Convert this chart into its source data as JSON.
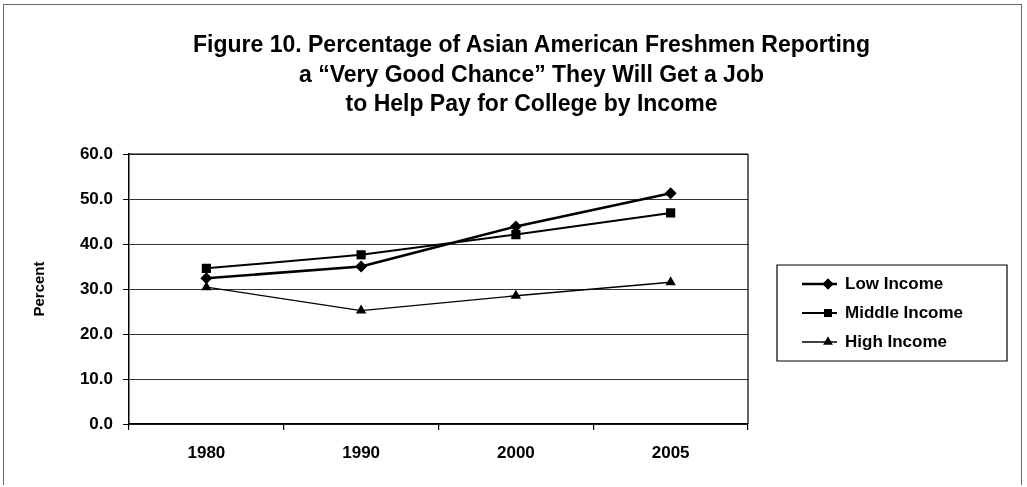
{
  "chart_data": {
    "type": "line",
    "title": "Figure 10. Percentage of Asian American Freshmen Reporting\na “Very Good Chance” They Will Get a Job\nto Help Pay for College by Income",
    "ylabel": "Percent",
    "categories": [
      "1980",
      "1990",
      "2000",
      "2005"
    ],
    "series": [
      {
        "name": "Low Income",
        "color": "#000000",
        "marker": "diamond",
        "values": [
          32.4,
          35.0,
          43.9,
          51.3
        ]
      },
      {
        "name": "Middle Income",
        "color": "#000000",
        "marker": "square",
        "values": [
          34.6,
          37.6,
          42.1,
          46.9
        ]
      },
      {
        "name": "High Income",
        "color": "#000000",
        "marker": "triangle",
        "values": [
          30.4,
          25.2,
          28.5,
          31.5
        ]
      }
    ],
    "ylim": [
      0,
      60
    ],
    "yticks": [
      {
        "value": 0,
        "label": "0.0"
      },
      {
        "value": 10,
        "label": "10.0"
      },
      {
        "value": 20,
        "label": "20.0"
      },
      {
        "value": 30,
        "label": "30.0"
      },
      {
        "value": 40,
        "label": "40.0"
      },
      {
        "value": 50,
        "label": "50.0"
      },
      {
        "value": 60,
        "label": "60.0"
      }
    ],
    "grid": "y",
    "legend": "right"
  }
}
